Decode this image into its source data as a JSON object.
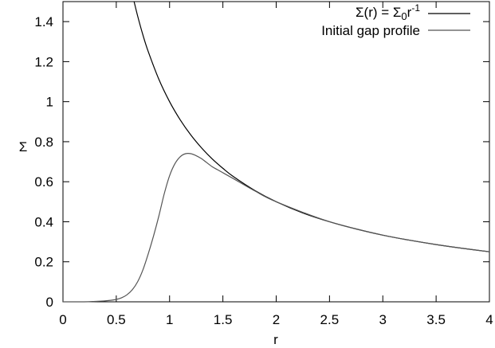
{
  "chart_data": {
    "type": "line",
    "xlabel": "r",
    "ylabel": "Σ",
    "xlim": [
      0,
      4
    ],
    "ylim": [
      0,
      1.5
    ],
    "x_ticks": [
      0,
      0.5,
      1,
      1.5,
      2,
      2.5,
      3,
      3.5,
      4
    ],
    "x_tick_labels": [
      "0",
      "0.5",
      "1",
      "1.5",
      "2",
      "2.5",
      "3",
      "3.5",
      "4"
    ],
    "y_ticks": [
      0,
      0.2,
      0.4,
      0.6,
      0.8,
      1,
      1.2,
      1.4
    ],
    "y_tick_labels": [
      "0",
      "0.2",
      "0.4",
      "0.6",
      "0.8",
      "1",
      "1.2",
      "1.4"
    ],
    "grid": false,
    "legend_position": "top-right",
    "series": [
      {
        "legend_parts": [
          "Σ(r) = Σ",
          "0",
          "r",
          "-1"
        ],
        "color": "#000000",
        "x": [
          0.667,
          0.7,
          0.75,
          0.8,
          0.9,
          1.0,
          1.1,
          1.2,
          1.3,
          1.4,
          1.5,
          1.6,
          1.8,
          2.0,
          2.25,
          2.5,
          2.75,
          3.0,
          3.25,
          3.5,
          3.75,
          4.0
        ],
        "y": [
          1.5,
          1.429,
          1.333,
          1.25,
          1.111,
          1.0,
          0.909,
          0.833,
          0.769,
          0.714,
          0.667,
          0.625,
          0.556,
          0.5,
          0.444,
          0.4,
          0.364,
          0.333,
          0.308,
          0.286,
          0.267,
          0.25
        ]
      },
      {
        "legend_parts": [
          "Initial gap profile"
        ],
        "color": "#555555",
        "x": [
          0.0,
          0.2,
          0.3,
          0.4,
          0.5,
          0.55,
          0.6,
          0.65,
          0.7,
          0.75,
          0.8,
          0.85,
          0.9,
          0.95,
          1.0,
          1.05,
          1.1,
          1.15,
          1.2,
          1.25,
          1.3,
          1.35,
          1.4,
          1.45,
          1.5,
          1.6,
          1.8,
          2.0,
          2.5,
          3.0,
          3.5,
          4.0
        ],
        "y": [
          0.0,
          0.0,
          0.002,
          0.005,
          0.012,
          0.02,
          0.035,
          0.06,
          0.1,
          0.16,
          0.24,
          0.33,
          0.43,
          0.54,
          0.63,
          0.69,
          0.725,
          0.74,
          0.74,
          0.73,
          0.715,
          0.695,
          0.675,
          0.66,
          0.645,
          0.615,
          0.554,
          0.5,
          0.4,
          0.333,
          0.286,
          0.25
        ]
      }
    ]
  }
}
